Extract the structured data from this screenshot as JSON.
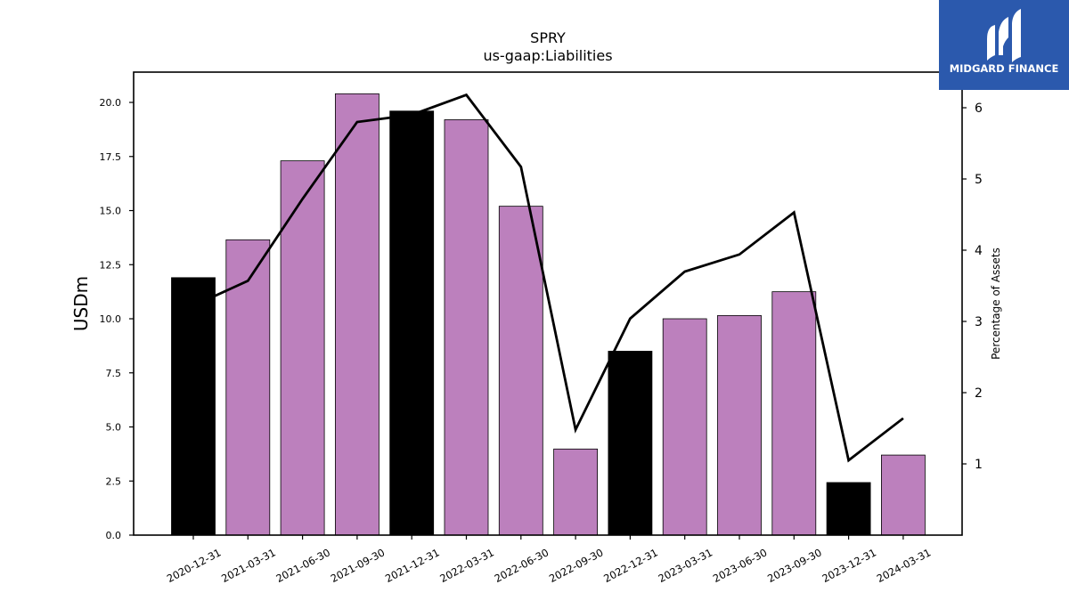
{
  "chart_data": {
    "type": "bar",
    "title": "SPRY",
    "subtitle": "us-gaap:Liabilities",
    "ylabel": "USDm",
    "y2label": "Percentage of Assets",
    "ylim": [
      0,
      21.4
    ],
    "y2lim": [
      0,
      6.5
    ],
    "yticks": [
      "0.0",
      "2.5",
      "5.0",
      "7.5",
      "10.0",
      "12.5",
      "15.0",
      "17.5",
      "20.0"
    ],
    "y2ticks": [
      "1",
      "2",
      "3",
      "4",
      "5",
      "6"
    ],
    "categories": [
      "2020-12-31",
      "2021-03-31",
      "2021-06-30",
      "2021-09-30",
      "2021-12-31",
      "2022-03-31",
      "2022-06-30",
      "2022-09-30",
      "2022-12-31",
      "2023-03-31",
      "2023-06-30",
      "2023-09-30",
      "2023-12-31",
      "2024-03-31"
    ],
    "series": [
      {
        "type": "bar",
        "values": [
          11.9,
          13.65,
          17.3,
          20.4,
          19.6,
          19.2,
          15.2,
          3.98,
          8.5,
          10.0,
          10.15,
          11.25,
          2.43,
          3.7
        ],
        "colors": [
          "#000000",
          "#bc80bd",
          "#bc80bd",
          "#bc80bd",
          "#000000",
          "#bc80bd",
          "#bc80bd",
          "#bc80bd",
          "#000000",
          "#bc80bd",
          "#bc80bd",
          "#bc80bd",
          "#000000",
          "#bc80bd"
        ]
      },
      {
        "type": "line",
        "axis": "right",
        "values": [
          3.22,
          3.57,
          4.72,
          5.8,
          5.9,
          6.18,
          5.17,
          1.48,
          3.04,
          3.7,
          3.94,
          4.53,
          1.05,
          1.64
        ],
        "color": "#000000"
      }
    ],
    "grid": false
  },
  "logo": {
    "text": "MIDGARD FINANCE",
    "background": "#2b59ad",
    "color": "#ffffff"
  }
}
